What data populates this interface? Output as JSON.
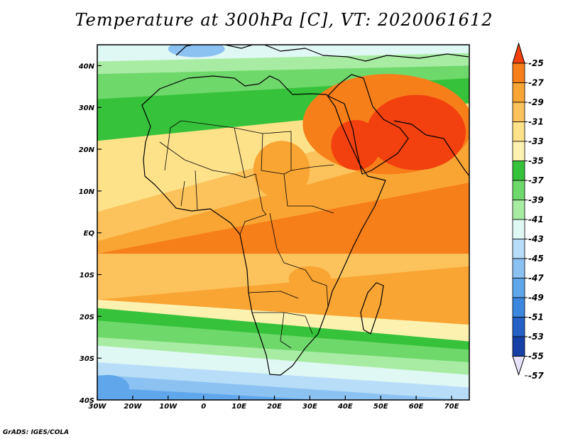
{
  "map": {
    "title": "Temperature at 300hPa [C], VT: 2020061612",
    "credit": "GrADS: IGES/COLA",
    "lat_ticks": [
      "40N",
      "30N",
      "20N",
      "10N",
      "EQ",
      "10S",
      "20S",
      "30S",
      "40S"
    ],
    "lon_ticks": [
      "30W",
      "20W",
      "10W",
      "0",
      "10E",
      "20E",
      "30E",
      "40E",
      "50E",
      "60E",
      "70E"
    ],
    "extent": {
      "lon": [
        -30,
        75
      ],
      "lat": [
        -40,
        45
      ]
    },
    "colorbar": {
      "labels": [
        "-25",
        "-27",
        "-29",
        "-31",
        "-33",
        "-35",
        "-37",
        "-39",
        "-41",
        "-43",
        "-45",
        "-47",
        "-49",
        "-51",
        "-53",
        "-55",
        "-57"
      ],
      "colors": [
        "#f2400f",
        "#f77f1a",
        "#f9a534",
        "#fcc35c",
        "#fee28a",
        "#fdf1b0",
        "#36c23a",
        "#6fd86b",
        "#a8eca3",
        "#e0f8f4",
        "#b7ddf8",
        "#8cc2f2",
        "#5fa6eb",
        "#3c86dd",
        "#2460c6",
        "#1740a6",
        "#0d1f7e"
      ]
    },
    "bands": [
      {
        "color": "#e0f8f4",
        "lat_w": 45,
        "lat_e": 45
      },
      {
        "color": "#a8eca3",
        "lat_w": 41,
        "lat_e": 43
      },
      {
        "color": "#6fd86b",
        "lat_w": 38,
        "lat_e": 40
      },
      {
        "color": "#36c23a",
        "lat_w": 32,
        "lat_e": 37
      },
      {
        "color": "#fee28a",
        "lat_w": 22,
        "lat_e": 31
      },
      {
        "color": "#fcc35c",
        "lat_w": 5,
        "lat_e": 30
      },
      {
        "color": "#f9a534",
        "lat_w": -2,
        "lat_e": 22
      },
      {
        "color": "#f77f1a",
        "lat_w": -5,
        "lat_e": 12
      },
      {
        "color": "#fcc35c",
        "lat_w": -5,
        "lat_e": -5
      },
      {
        "color": "#f9a534",
        "lat_w": -16,
        "lat_e": -8
      },
      {
        "color": "#fdf1b0",
        "lat_w": -16,
        "lat_e": -22
      },
      {
        "color": "#36c23a",
        "lat_w": -18,
        "lat_e": -26
      },
      {
        "color": "#6fd86b",
        "lat_w": -21,
        "lat_e": -28
      },
      {
        "color": "#a8eca3",
        "lat_w": -25,
        "lat_e": -31
      },
      {
        "color": "#e0f8f4",
        "lat_w": -27,
        "lat_e": -34
      },
      {
        "color": "#b7ddf8",
        "lat_w": -31,
        "lat_e": -37
      },
      {
        "color": "#8cc2f2",
        "lat_w": -34,
        "lat_e": -40
      },
      {
        "color": "#5fa6eb",
        "lat_w": -37,
        "lat_e": -42
      }
    ],
    "blobs": [
      {
        "color": "#f77f1a",
        "lon": 52,
        "lat": 26,
        "rlon": 24,
        "rlat": 12
      },
      {
        "color": "#f2400f",
        "lon": 60,
        "lat": 24,
        "rlon": 14,
        "rlat": 9
      },
      {
        "color": "#f2400f",
        "lon": 43,
        "lat": 21,
        "rlon": 7,
        "rlat": 6
      },
      {
        "color": "#f9a534",
        "lon": 22,
        "lat": 15,
        "rlon": 8,
        "rlat": 7
      },
      {
        "color": "#f9a534",
        "lon": 30,
        "lat": -11,
        "rlon": 6,
        "rlat": 3
      },
      {
        "color": "#8cc2f2",
        "lon": -2,
        "lat": 44,
        "rlon": 8,
        "rlat": 2
      },
      {
        "color": "#5fa6eb",
        "lon": -27,
        "lat": -37,
        "rlon": 6,
        "rlat": 3
      }
    ]
  }
}
